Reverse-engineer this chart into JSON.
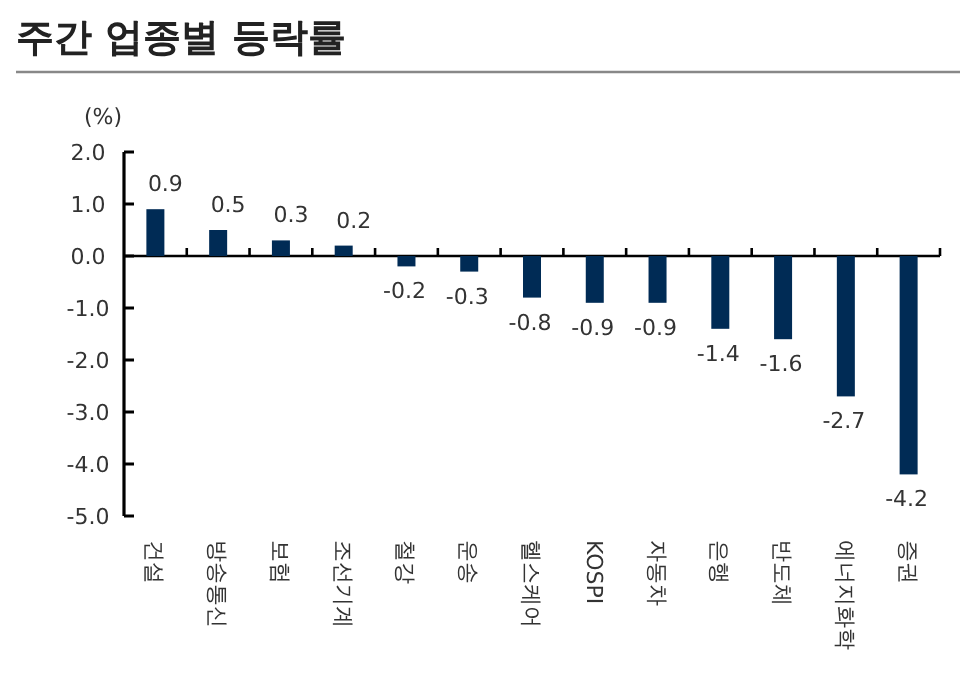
{
  "chart_data": {
    "type": "bar",
    "title": "주간 업종별 등락률",
    "ylabel": "(%)",
    "categories": [
      "건설",
      "방송통신",
      "보험",
      "조선기계",
      "철강",
      "운송",
      "헬스케어",
      "KOSPI",
      "자동차",
      "은행",
      "반도체",
      "에너지화학",
      "증권"
    ],
    "values": [
      0.9,
      0.5,
      0.3,
      0.2,
      -0.2,
      -0.3,
      -0.8,
      -0.9,
      -0.9,
      -1.4,
      -1.6,
      -2.7,
      -4.2
    ],
    "color": "#002b55",
    "ylim": [
      -5,
      2
    ],
    "yticks": [
      {
        "value": 2,
        "label": "2.0"
      },
      {
        "value": 1,
        "label": "1.0"
      },
      {
        "value": 0,
        "label": "0.0"
      },
      {
        "value": -1,
        "label": "-1.0"
      },
      {
        "value": -2,
        "label": "-2.0"
      },
      {
        "value": -3,
        "label": "-3.0"
      },
      {
        "value": -4,
        "label": "-4.0"
      },
      {
        "value": -5,
        "label": "-5.0"
      }
    ],
    "data_labels": true
  }
}
